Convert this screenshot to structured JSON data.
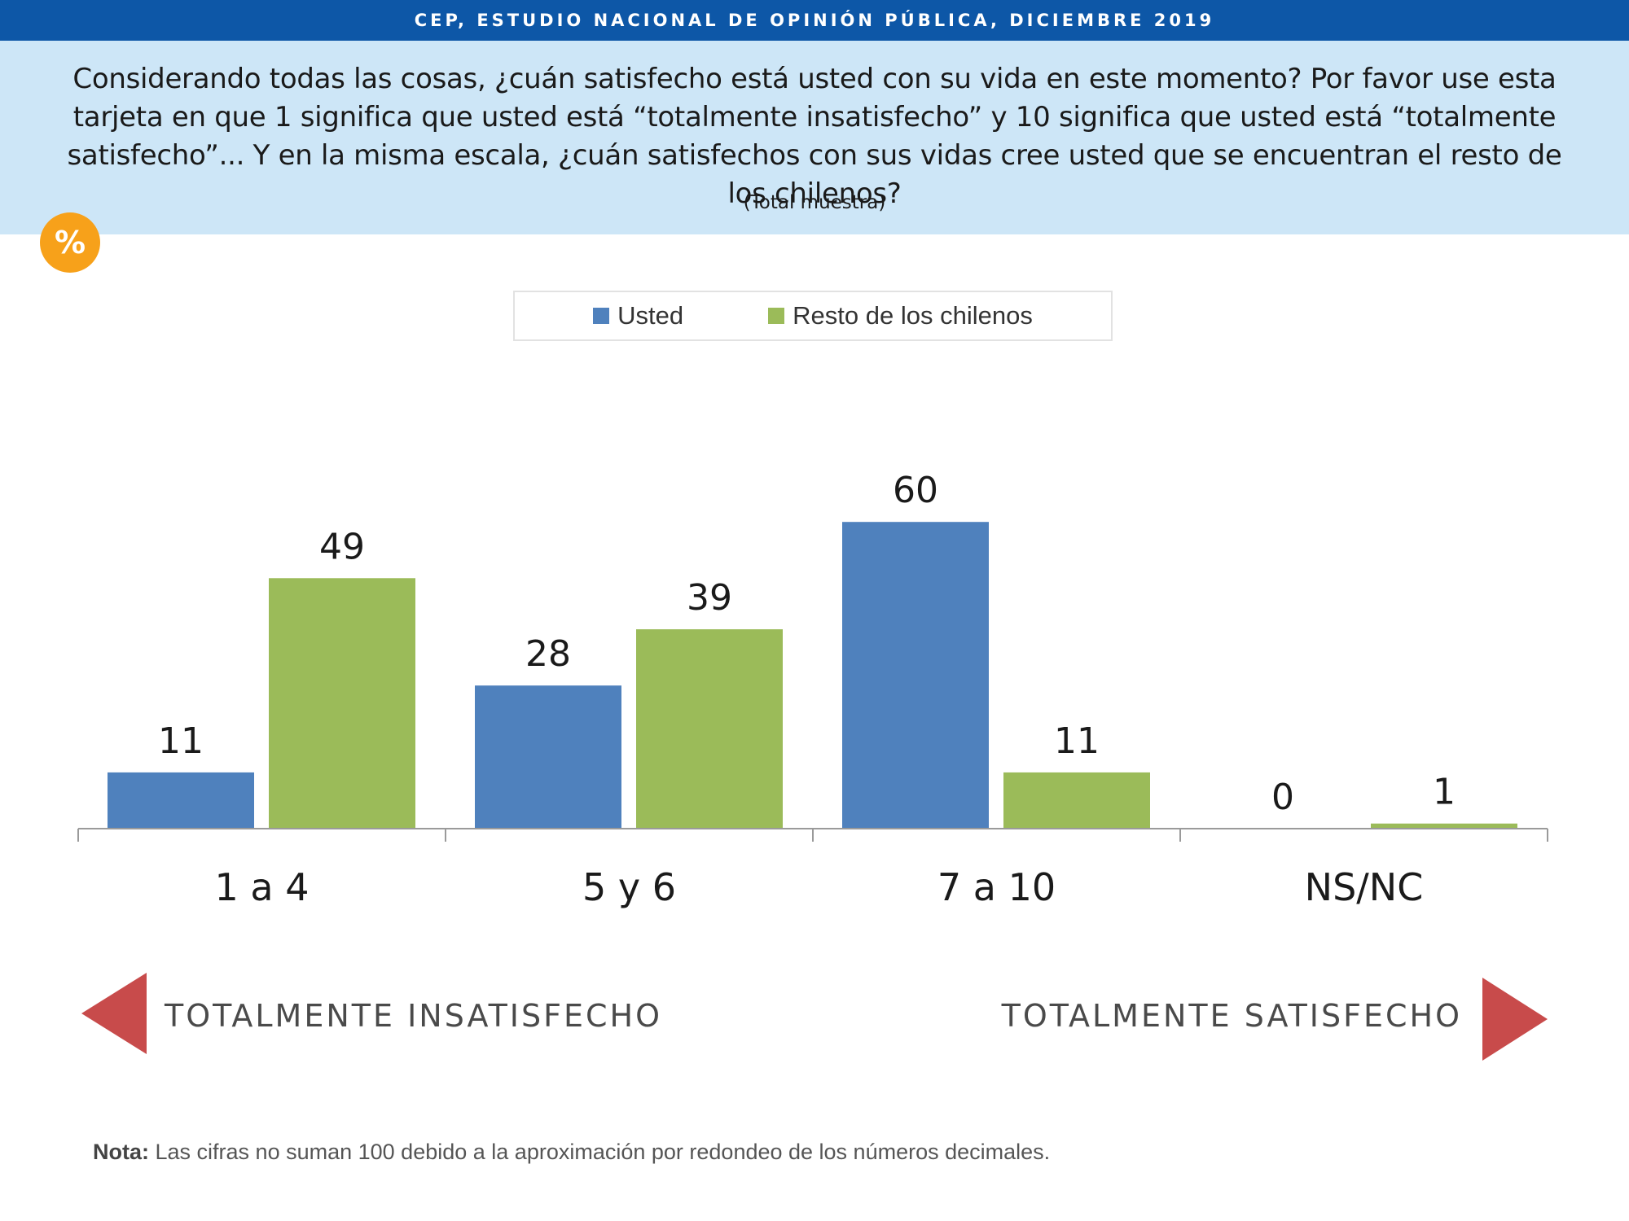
{
  "header": {
    "banner": "CEP, ESTUDIO NACIONAL DE OPINIÓN PÚBLICA, DICIEMBRE 2019",
    "question": "Considerando todas las cosas, ¿cuán satisfecho está usted con su vida en este momento? Por favor use esta tarjeta en que 1 significa que usted está “totalmente insatisfecho” y 10 significa que usted está “totalmente satisfecho”... Y en la misma escala, ¿cuán satisfechos con sus vidas cree usted que se encuentran el resto de los chilenos?",
    "sample": "(Total muestra)",
    "badge": "%"
  },
  "chart_data": {
    "type": "bar",
    "categories": [
      "1 a 4",
      "5 y 6",
      "7 a 10",
      "NS/NC"
    ],
    "series": [
      {
        "name": "Usted",
        "values": [
          11,
          28,
          60,
          0
        ],
        "color": "#4f81bd"
      },
      {
        "name": "Resto de los chilenos",
        "values": [
          49,
          39,
          11,
          1
        ],
        "color": "#9bbb59"
      }
    ],
    "ylim": [
      0,
      60
    ],
    "grid": false,
    "legend": "top-center",
    "data_labels": true
  },
  "scale": {
    "left_label": "TOTALMENTE INSATISFECHO",
    "right_label": "TOTALMENTE SATISFECHO",
    "arrow_color": "#c84b4b"
  },
  "footer": {
    "note_label": "Nota:",
    "note_text": "Las cifras no suman 100 debido a la aproximación por redondeo de los números decimales."
  }
}
